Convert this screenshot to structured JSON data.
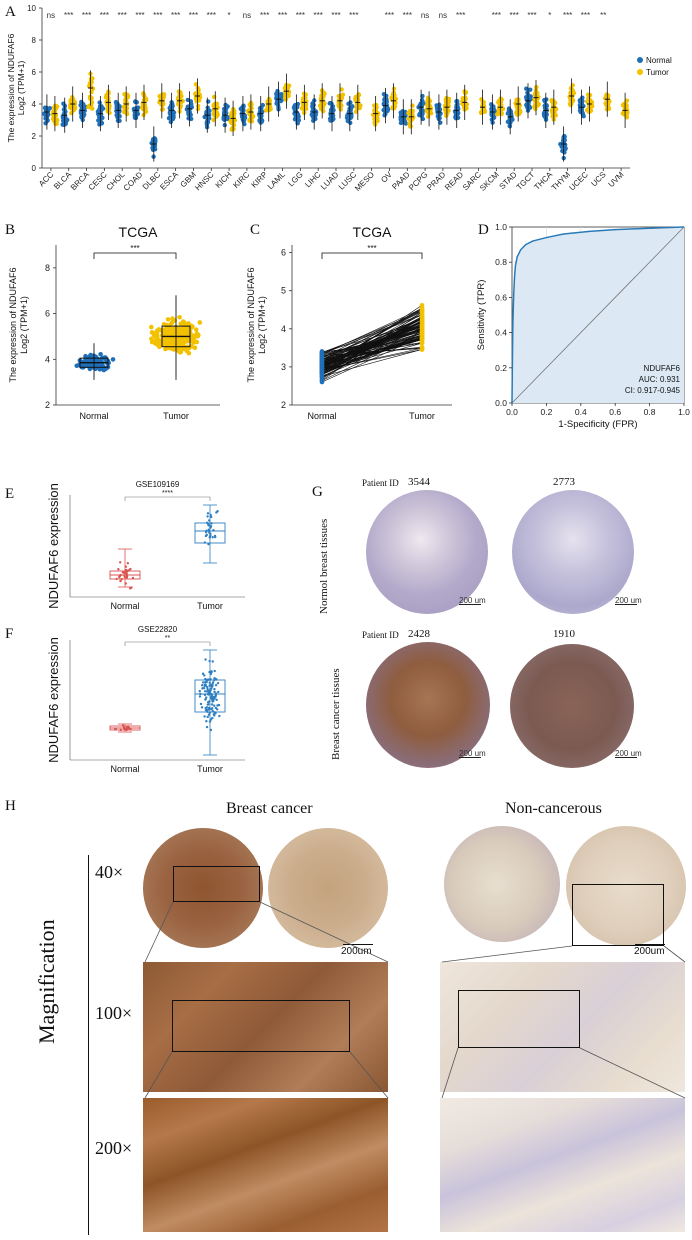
{
  "panel_labels": {
    "a": "A",
    "b": "B",
    "c": "C",
    "d": "D",
    "e": "E",
    "f": "F",
    "g": "G",
    "h": "H"
  },
  "colors": {
    "normal": "#1f6fb8",
    "tumor": "#f2c200",
    "box_red": "#d9534f",
    "box_blue": "#2f7fc1",
    "roc_fill": "#dce9f5",
    "roc_line": "#2a7ab8",
    "ihc_brown": "#8a4b26",
    "ihc_blue": "#6f7fb6"
  },
  "chart_data": [
    {
      "id": "A",
      "type": "box-scatter",
      "ylabel_line1": "The expression of NDUFAF6",
      "ylabel_line2": "Log2 (TPM+1)",
      "ylim": [
        0,
        10
      ],
      "yticks": [
        "0",
        "2",
        "4",
        "6",
        "8",
        "10"
      ],
      "legend": [
        {
          "name": "Normal"
        },
        {
          "name": "Tumor"
        }
      ],
      "categories": [
        "ACC",
        "BLCA",
        "BRCA",
        "CESC",
        "CHOL",
        "COAD",
        "DLBC",
        "ESCA",
        "GBM",
        "HNSC",
        "KICH",
        "KIRC",
        "KIRP",
        "LAML",
        "LGG",
        "LIHC",
        "LUAD",
        "LUSC",
        "MESO",
        "OV",
        "PAAD",
        "PCPG",
        "PRAD",
        "READ",
        "SARC",
        "SKCM",
        "STAD",
        "TGCT",
        "THCA",
        "THYM",
        "UCEC",
        "UCS",
        "UVM"
      ],
      "significance": [
        "ns",
        "***",
        "***",
        "***",
        "***",
        "***",
        "***",
        "***",
        "***",
        "***",
        "*",
        "ns",
        "***",
        "***",
        "***",
        "***",
        "***",
        "***",
        "",
        "***",
        "***",
        "ns",
        "ns",
        "***",
        "",
        "***",
        "***",
        "***",
        "*",
        "***",
        "***",
        "**",
        ""
      ],
      "normal_median": [
        3.5,
        3.3,
        3.6,
        3.4,
        3.6,
        3.6,
        1.5,
        3.6,
        3.7,
        3.3,
        3.3,
        3.4,
        3.4,
        4.3,
        3.5,
        3.5,
        3.4,
        3.4,
        null,
        3.9,
        3.2,
        3.8,
        3.5,
        3.6,
        null,
        3.5,
        3.2,
        4.2,
        3.6,
        1.5,
        3.8,
        null,
        null
      ],
      "tumor_median": [
        3.4,
        4.0,
        5.0,
        4.1,
        4.0,
        4.1,
        4.2,
        4.2,
        4.5,
        3.7,
        3.1,
        3.5,
        4.0,
        4.8,
        4.1,
        4.2,
        4.2,
        4.1,
        3.4,
        4.2,
        3.2,
        3.7,
        3.8,
        4.1,
        3.8,
        3.8,
        4.0,
        4.4,
        3.8,
        4.5,
        4.0,
        4.3,
        3.6
      ]
    },
    {
      "id": "B",
      "type": "box-violin",
      "title": "TCGA",
      "ylabel_line1": "The expression of NDUFAF6",
      "ylabel_line2": "Log2 (TPM+1)",
      "categories": [
        "Normal",
        "Tumor"
      ],
      "ylim": [
        2,
        9
      ],
      "yticks": [
        "2",
        "4",
        "6",
        "8"
      ],
      "medians": [
        3.85,
        5.0
      ],
      "q1": [
        3.65,
        4.55
      ],
      "q3": [
        4.05,
        5.45
      ],
      "whisker_low": [
        3.1,
        3.1
      ],
      "whisker_high": [
        4.7,
        6.8
      ],
      "significance": "***"
    },
    {
      "id": "C",
      "type": "paired-line",
      "title": "TCGA",
      "ylabel_line1": "The expression of NDUFAF6",
      "ylabel_line2": "Log2 (TPM+1)",
      "categories": [
        "Normal",
        "Tumor"
      ],
      "ylim": [
        2,
        6.2
      ],
      "yticks": [
        "2",
        "3",
        "4",
        "5",
        "6"
      ],
      "significance": "***"
    },
    {
      "id": "D",
      "type": "roc",
      "xlabel": "1-Specificity (FPR)",
      "ylabel": "Sensitivity (TPR)",
      "xticks": [
        "0.0",
        "0.2",
        "0.4",
        "0.6",
        "0.8",
        "1.0"
      ],
      "yticks": [
        "0.0",
        "0.2",
        "0.4",
        "0.6",
        "0.8",
        "1.0"
      ],
      "fpr": [
        0,
        0.002,
        0.005,
        0.01,
        0.015,
        0.02,
        0.03,
        0.05,
        0.08,
        0.12,
        0.2,
        0.3,
        0.45,
        0.6,
        0.8,
        1.0
      ],
      "tpr": [
        0,
        0.2,
        0.45,
        0.62,
        0.72,
        0.78,
        0.83,
        0.87,
        0.9,
        0.92,
        0.94,
        0.96,
        0.975,
        0.985,
        0.993,
        1.0
      ],
      "annotation": [
        "NDUFAF6",
        "AUC: 0.931",
        "CI: 0.917-0.945"
      ]
    },
    {
      "id": "E",
      "type": "box-dot",
      "title": "GSE109169",
      "ylabel": "NDUFAF6 expression",
      "categories": [
        "Normal",
        "Tumor"
      ],
      "significance": "****"
    },
    {
      "id": "F",
      "type": "box-dot",
      "title": "GSE22820",
      "ylabel": "NDUFAF6 expression",
      "categories": [
        "Normal",
        "Tumor"
      ],
      "significance": "**"
    }
  ],
  "panel_g": {
    "patient_id_label": "Patient ID",
    "ids_top": [
      "3544",
      "2773"
    ],
    "ids_bottom": [
      "2428",
      "1910"
    ],
    "row_label_top": "Normol breast tissues",
    "row_label_bottom": "Breast cancer tissues",
    "scale": "200 um"
  },
  "panel_h": {
    "col_left": "Breast cancer",
    "col_right": "Non-cancerous",
    "side_label": "Magnification",
    "mags": [
      "40×",
      "100×",
      "200×"
    ],
    "scale": "200um"
  }
}
